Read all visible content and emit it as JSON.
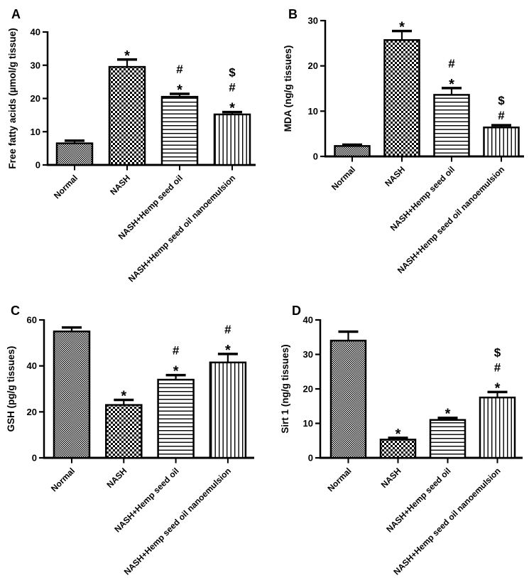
{
  "figure": {
    "description": "Four-panel bar chart figure with panels A-D",
    "colors": {
      "ink": "#000000",
      "background": "#ffffff"
    }
  },
  "categories": [
    "Normal",
    "NASH",
    "NASH+Hemp seed oil",
    "NASH+Hemp seed oil nanoemulsion"
  ],
  "chart_data": [
    {
      "panel": "A",
      "type": "bar",
      "title": "",
      "ylabel": "Free fatty acids (µmol/g tissue)",
      "xlabel": "",
      "categories": [
        "Normal",
        "NASH",
        "NASH+Hemp seed oil",
        "NASH+Hemp seed oil nanoemulsion"
      ],
      "values": [
        6.5,
        29.5,
        20.5,
        15.2
      ],
      "errors_upper": [
        0.8,
        2.2,
        0.9,
        0.7
      ],
      "ylim": [
        0,
        40
      ],
      "yticks": [
        0,
        10,
        20,
        30,
        40
      ],
      "bar_patterns": [
        "fine-checker",
        "checkerboard",
        "horizontal-lines",
        "vertical-lines"
      ],
      "significance_markers": [
        [],
        [
          "*"
        ],
        [
          "*",
          "#"
        ],
        [
          "*",
          "#",
          "$"
        ]
      ],
      "grid": false,
      "legend": "none"
    },
    {
      "panel": "B",
      "type": "bar",
      "title": "",
      "ylabel": "MDA (ng/g tissues)",
      "xlabel": "",
      "categories": [
        "Normal",
        "NASH",
        "NASH+Hemp seed oil",
        "NASH+Hemp seed oil nanoemulsion"
      ],
      "values": [
        2.3,
        25.7,
        13.6,
        6.4
      ],
      "errors_upper": [
        0.3,
        2.0,
        1.5,
        0.5
      ],
      "ylim": [
        0,
        30
      ],
      "yticks": [
        0,
        10,
        20,
        30
      ],
      "bar_patterns": [
        "fine-checker",
        "checkerboard",
        "horizontal-lines",
        "vertical-lines"
      ],
      "significance_markers": [
        [],
        [
          "*"
        ],
        [
          "*",
          "#"
        ],
        [
          "#",
          "$"
        ]
      ],
      "grid": false,
      "legend": "none"
    },
    {
      "panel": "C",
      "type": "bar",
      "title": "",
      "ylabel": "GSH (pg/g tissues)",
      "xlabel": "",
      "categories": [
        "Normal",
        "NASH",
        "NASH+Hemp seed oil",
        "NASH+Hemp seed oil nanoemulsion"
      ],
      "values": [
        55,
        23,
        34,
        41.5
      ],
      "errors_upper": [
        1.7,
        2.2,
        2.0,
        3.7
      ],
      "ylim": [
        0,
        60
      ],
      "yticks": [
        0,
        20,
        40,
        60
      ],
      "bar_patterns": [
        "fine-checker",
        "checkerboard",
        "horizontal-lines",
        "vertical-lines"
      ],
      "significance_markers": [
        [],
        [
          "*"
        ],
        [
          "*",
          "#"
        ],
        [
          "*",
          "#"
        ]
      ],
      "grid": false,
      "legend": "none"
    },
    {
      "panel": "D",
      "type": "bar",
      "title": "",
      "ylabel": "Sirt 1 (ng/g tissues)",
      "xlabel": "",
      "categories": [
        "Normal",
        "NASH",
        "NASH+Hemp seed oil",
        "NASH+Hemp seed oil nanoemulsion"
      ],
      "values": [
        34,
        5.3,
        11,
        17.5
      ],
      "errors_upper": [
        2.6,
        0.5,
        0.6,
        1.6
      ],
      "ylim": [
        0,
        40
      ],
      "yticks": [
        0,
        10,
        20,
        30,
        40
      ],
      "bar_patterns": [
        "fine-checker",
        "checkerboard",
        "horizontal-lines",
        "vertical-lines"
      ],
      "significance_markers": [
        [],
        [
          "*"
        ],
        [
          "*"
        ],
        [
          "*",
          "#",
          "$"
        ]
      ],
      "grid": false,
      "legend": "none"
    }
  ]
}
